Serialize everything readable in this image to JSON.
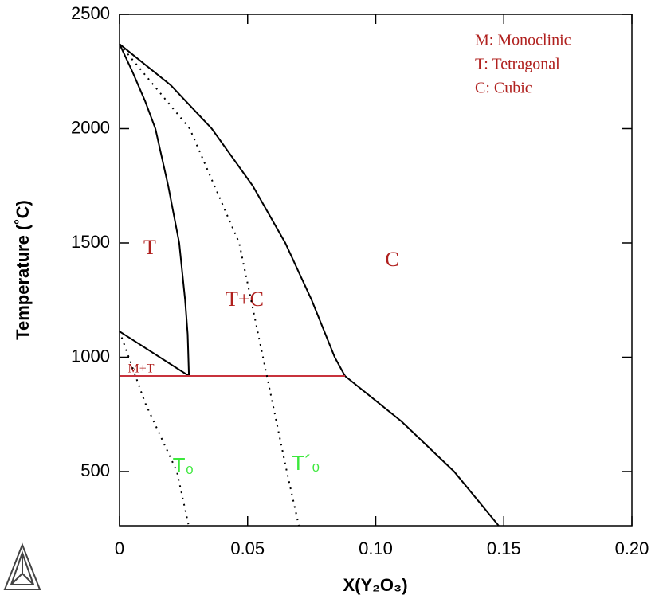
{
  "chart_data": {
    "type": "line",
    "x_label": "X(Y₂O₃)",
    "y_label": "Temperature (˚C)",
    "xlim": [
      0,
      0.2
    ],
    "ylim": [
      263,
      2500
    ],
    "xticks": [
      {
        "value": 0,
        "label": "0"
      },
      0.05,
      {
        "value": 0.1,
        "label": "0.10"
      },
      0.15,
      {
        "value": 0.2,
        "label": "0.20"
      }
    ],
    "yticks": [
      500,
      1000,
      1500,
      2000,
      2500
    ],
    "series": [
      {
        "color": "#000000",
        "dashed": false,
        "x": [
          0,
          0.005,
          0.01,
          0.014,
          0.019,
          0.0233,
          0.0256,
          0.0266,
          0.0271
        ],
        "values": [
          2370,
          2250,
          2120,
          2000,
          1750,
          1500,
          1250,
          1100,
          918
        ]
      },
      {
        "color": "#000000",
        "dashed": false,
        "x": [
          0,
          0.02,
          0.036,
          0.052,
          0.0647,
          0.075,
          0.084,
          0.088
        ],
        "values": [
          2370,
          2190,
          2000,
          1750,
          1500,
          1250,
          1000,
          918
        ]
      },
      {
        "color": "#000000",
        "dashed": false,
        "x": [
          0.088,
          0.11,
          0.1306,
          0.148
        ],
        "values": [
          918,
          720,
          500,
          263
        ]
      },
      {
        "color": "#000000",
        "dashed": false,
        "x": [
          0,
          0.0271
        ],
        "values": [
          1113,
          918
        ]
      },
      {
        "color": "#c8323c",
        "dashed": false,
        "x": [
          0,
          0.088
        ],
        "values": [
          918,
          918
        ]
      },
      {
        "color": "#000000",
        "dashed": true,
        "x": [
          0,
          0.01,
          0.0224,
          0.027
        ],
        "values": [
          1113,
          800,
          500,
          263
        ]
      },
      {
        "color": "#000000",
        "dashed": true,
        "x": [
          0,
          0.0274,
          0.0467,
          0.056,
          0.0653,
          0.07
        ],
        "values": [
          2370,
          2000,
          1500,
          1000,
          500,
          263
        ]
      }
    ],
    "legend_text": [
      "M: Monoclinic",
      "T: Tetragonal",
      "C: Cubic"
    ],
    "annotations": [
      "T",
      "C",
      "T+C",
      "M+T",
      "T₀",
      "T´₀"
    ]
  }
}
